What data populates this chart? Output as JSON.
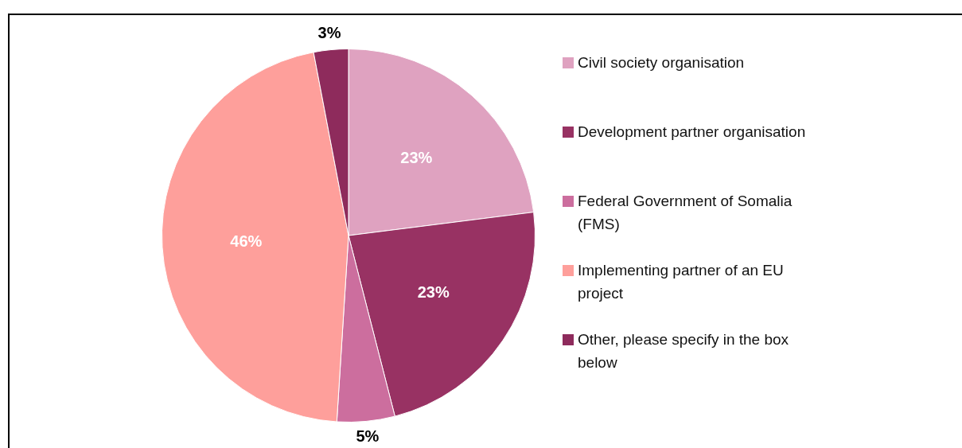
{
  "chart_data": {
    "type": "pie",
    "categories": [
      "Civil society organisation",
      "Development partner organisation",
      "Federal Government of Somalia (FMS)",
      "Implementing partner of an EU project",
      "Other, please specify in the box below"
    ],
    "values": [
      23,
      23,
      5,
      46,
      3
    ],
    "colors": [
      "#dfa2c0",
      "#983263",
      "#cc6e9e",
      "#fe9f9b",
      "#8e2b5c"
    ],
    "value_labels": [
      "23%",
      "23%",
      "5%",
      "46%",
      "3%"
    ],
    "legend": "right"
  }
}
